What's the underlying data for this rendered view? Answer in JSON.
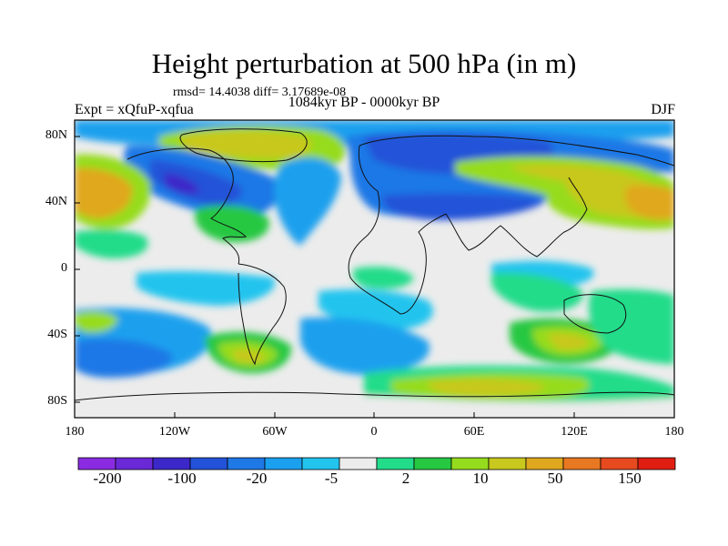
{
  "title": "Height perturbation at 500 hPa (in m)",
  "stats": "rmsd= 14.4038  diff= 3.17689e-08",
  "period": "1084kyr BP - 0000kyr BP",
  "experiment": "Expt = xQfuP-xqfua",
  "season": "DJF",
  "lat_labels": [
    "80N",
    "40N",
    "0",
    "40S",
    "80S"
  ],
  "lon_labels": [
    "180",
    "120W",
    "60W",
    "0",
    "60E",
    "120E",
    "180"
  ],
  "colorbar": {
    "colors": [
      "#8a2be2",
      "#6a28d6",
      "#3c28c8",
      "#2252d8",
      "#1e78e6",
      "#1aa0ee",
      "#22c4ee",
      "#ececec",
      "#22dc8a",
      "#26c842",
      "#96dc1e",
      "#c8c81e",
      "#e0a81e",
      "#e87822",
      "#e64a1e",
      "#e01e12"
    ],
    "labels": [
      "-200",
      "-100",
      "-20",
      "-5",
      "2",
      "10",
      "50",
      "150"
    ]
  }
}
